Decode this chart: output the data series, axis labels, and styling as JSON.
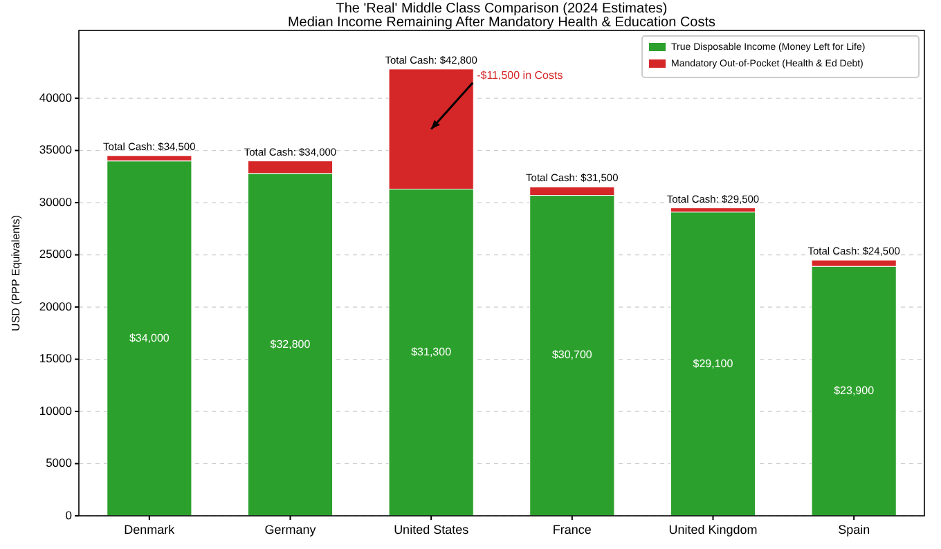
{
  "chart_data": {
    "type": "bar",
    "title": "The 'Real' Middle Class Comparison (2024 Estimates)",
    "subtitle": "Median Income Remaining After Mandatory Health & Education Costs",
    "ylabel": "USD (PPP Equivalents)",
    "categories": [
      "Denmark",
      "Germany",
      "United States",
      "France",
      "United Kingdom",
      "Spain"
    ],
    "stacked": true,
    "series": [
      {
        "name": "True Disposable Income (Money Left for Life)",
        "color": "#2ca02c",
        "values": [
          34000,
          32800,
          31300,
          30700,
          29100,
          23900
        ],
        "value_labels": [
          "$34,000",
          "$32,800",
          "$31,300",
          "$30,700",
          "$29,100",
          "$23,900"
        ]
      },
      {
        "name": "Mandatory Out-of-Pocket (Health & Ed Debt)",
        "color": "#d62728",
        "values": [
          500,
          1200,
          11500,
          800,
          400,
          600
        ]
      }
    ],
    "totals": [
      "Total Cash: $34,500",
      "Total Cash: $34,000",
      "Total Cash: $42,800",
      "Total Cash: $31,500",
      "Total Cash: $29,500",
      "Total Cash: $24,500"
    ],
    "annotations": [
      "-$11,500 in Costs"
    ],
    "ylim": [
      0,
      46500
    ],
    "yticks": [
      0,
      5000,
      10000,
      15000,
      20000,
      25000,
      30000,
      35000,
      40000
    ],
    "grid": "y",
    "legend": "top right"
  }
}
